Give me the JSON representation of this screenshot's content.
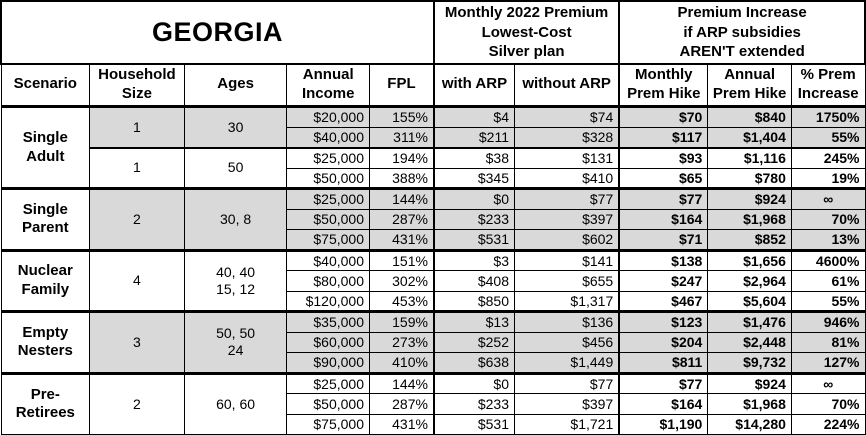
{
  "title": "GEORGIA",
  "premium_group": "Monthly 2022 Premium\nLowest-Cost\nSilver plan",
  "increase_group": "Premium Increase\nif ARP subsidies\nAREN'T extended",
  "columns": [
    {
      "id": "scenario",
      "label": "Scenario"
    },
    {
      "id": "household-size",
      "label": "Household\nSize"
    },
    {
      "id": "ages",
      "label": "Ages"
    },
    {
      "id": "annual-income",
      "label": "Annual\nIncome"
    },
    {
      "id": "fpl",
      "label": "FPL"
    },
    {
      "id": "with-arp",
      "label": "with ARP"
    },
    {
      "id": "without-arp",
      "label": "without ARP"
    },
    {
      "id": "monthly-prem-hike",
      "label": "Monthly\nPrem Hike"
    },
    {
      "id": "annual-prem-hike",
      "label": "Annual\nPrem Hike"
    },
    {
      "id": "pct-prem-increase",
      "label": "% Prem\nIncrease"
    }
  ],
  "groups": [
    {
      "scenario": "Single\nAdult",
      "subgroups": [
        {
          "household": "1",
          "ages": "30",
          "shaded": true,
          "rows": [
            [
              "$20,000",
              "155%",
              "$4",
              "$74",
              "$70",
              "$840",
              "1750%"
            ],
            [
              "$40,000",
              "311%",
              "$211",
              "$328",
              "$117",
              "$1,404",
              "55%"
            ]
          ]
        },
        {
          "household": "1",
          "ages": "50",
          "shaded": false,
          "rows": [
            [
              "$25,000",
              "194%",
              "$38",
              "$131",
              "$93",
              "$1,116",
              "245%"
            ],
            [
              "$50,000",
              "388%",
              "$345",
              "$410",
              "$65",
              "$780",
              "19%"
            ]
          ]
        }
      ]
    },
    {
      "scenario": "Single\nParent",
      "subgroups": [
        {
          "household": "2",
          "ages": "30, 8",
          "shaded": true,
          "rows": [
            [
              "$25,000",
              "144%",
              "$0",
              "$77",
              "$77",
              "$924",
              "∞"
            ],
            [
              "$50,000",
              "287%",
              "$233",
              "$397",
              "$164",
              "$1,968",
              "70%"
            ],
            [
              "$75,000",
              "431%",
              "$531",
              "$602",
              "$71",
              "$852",
              "13%"
            ]
          ]
        }
      ]
    },
    {
      "scenario": "Nuclear\nFamily",
      "subgroups": [
        {
          "household": "4",
          "ages": "40, 40\n15, 12",
          "shaded": false,
          "rows": [
            [
              "$40,000",
              "151%",
              "$3",
              "$141",
              "$138",
              "$1,656",
              "4600%"
            ],
            [
              "$80,000",
              "302%",
              "$408",
              "$655",
              "$247",
              "$2,964",
              "61%"
            ],
            [
              "$120,000",
              "453%",
              "$850",
              "$1,317",
              "$467",
              "$5,604",
              "55%"
            ]
          ]
        }
      ]
    },
    {
      "scenario": "Empty\nNesters",
      "subgroups": [
        {
          "household": "3",
          "ages": "50, 50\n24",
          "shaded": true,
          "rows": [
            [
              "$35,000",
              "159%",
              "$13",
              "$136",
              "$123",
              "$1,476",
              "946%"
            ],
            [
              "$60,000",
              "273%",
              "$252",
              "$456",
              "$204",
              "$2,448",
              "81%"
            ],
            [
              "$90,000",
              "410%",
              "$638",
              "$1,449",
              "$811",
              "$9,732",
              "127%"
            ]
          ]
        }
      ]
    },
    {
      "scenario": "Pre-\nRetirees",
      "subgroups": [
        {
          "household": "2",
          "ages": "60, 60",
          "shaded": false,
          "rows": [
            [
              "$25,000",
              "144%",
              "$0",
              "$77",
              "$77",
              "$924",
              "∞"
            ],
            [
              "$50,000",
              "287%",
              "$233",
              "$397",
              "$164",
              "$1,968",
              "70%"
            ],
            [
              "$75,000",
              "431%",
              "$531",
              "$1,721",
              "$1,190",
              "$14,280",
              "224%"
            ]
          ]
        }
      ]
    }
  ]
}
